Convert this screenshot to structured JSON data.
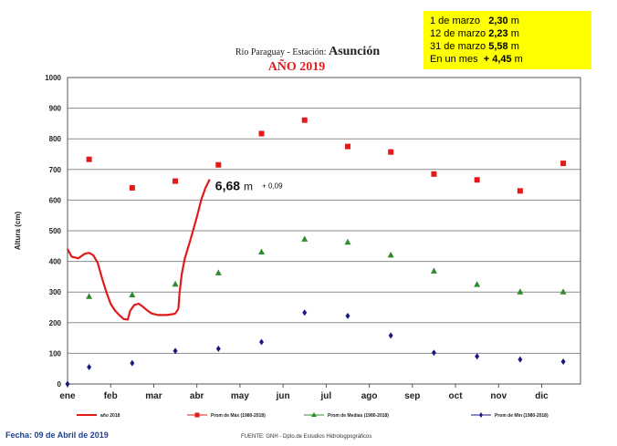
{
  "chart_data": {
    "type": "line",
    "title_line1": "Río Paraguay -  Estación: ",
    "title_station": "Asunción",
    "title_year": "AÑO 2019",
    "ylabel": "Altura (cm)",
    "xlabel": "",
    "ylim": [
      0,
      1000
    ],
    "yticks": [
      "0",
      "100",
      "200",
      "300",
      "400",
      "500",
      "600",
      "700",
      "800",
      "900",
      "1000"
    ],
    "categories": [
      "ene",
      "feb",
      "mar",
      "abr",
      "may",
      "jun",
      "jul",
      "ago",
      "sep",
      "oct",
      "nov",
      "dic"
    ],
    "grid": true,
    "legend_position": "bottom",
    "series": [
      {
        "name": "año 2018",
        "color": "#e21a1a",
        "style": "line",
        "points": [
          [
            0,
            440
          ],
          [
            0.1,
            415
          ],
          [
            0.25,
            410
          ],
          [
            0.4,
            425
          ],
          [
            0.5,
            428
          ],
          [
            0.6,
            420
          ],
          [
            0.7,
            395
          ],
          [
            0.8,
            345
          ],
          [
            0.9,
            300
          ],
          [
            1.0,
            262
          ],
          [
            1.1,
            240
          ],
          [
            1.2,
            225
          ],
          [
            1.3,
            212
          ],
          [
            1.4,
            210
          ],
          [
            1.45,
            238
          ],
          [
            1.55,
            258
          ],
          [
            1.65,
            262
          ],
          [
            1.75,
            252
          ],
          [
            1.85,
            240
          ],
          [
            1.95,
            230
          ],
          [
            2.1,
            225
          ],
          [
            2.3,
            225
          ],
          [
            2.45,
            228
          ],
          [
            2.5,
            230
          ],
          [
            2.57,
            245
          ],
          [
            2.6,
            300
          ],
          [
            2.65,
            360
          ],
          [
            2.72,
            410
          ],
          [
            2.85,
            470
          ],
          [
            3.0,
            545
          ],
          [
            3.1,
            600
          ],
          [
            3.2,
            640
          ],
          [
            3.3,
            668
          ]
        ]
      },
      {
        "name": "Prom de Máx   (1980-2018)",
        "color": "#e21a1a",
        "style": "square",
        "x": [
          0.5,
          1.5,
          2.5,
          3.5,
          4.5,
          5.5,
          6.5,
          7.5,
          8.5,
          9.5,
          10.5,
          11.5
        ],
        "values": [
          733,
          640,
          662,
          715,
          817,
          861,
          775,
          757,
          685,
          666,
          630,
          720
        ]
      },
      {
        "name": "Prom de Medias   (1980-2018)",
        "color": "#2e8b2e",
        "style": "triangle",
        "x": [
          0.5,
          1.5,
          2.5,
          3.5,
          4.5,
          5.5,
          6.5,
          7.5,
          8.5,
          9.5,
          10.5,
          11.5
        ],
        "values": [
          285,
          290,
          325,
          362,
          430,
          472,
          462,
          420,
          368,
          324,
          300,
          300
        ]
      },
      {
        "name": "Prom de Min   (1980-2018)",
        "color": "#1a1a80",
        "style": "diamond",
        "x": [
          0,
          0.5,
          1.5,
          2.5,
          3.5,
          4.5,
          5.5,
          6.5,
          7.5,
          8.5,
          9.5,
          10.5,
          11.5
        ],
        "values": [
          0,
          55,
          68,
          108,
          115,
          137,
          233,
          222,
          158,
          102,
          90,
          80,
          73
        ]
      }
    ],
    "annotation": {
      "x": 3.3,
      "value": "6,68",
      "unit": "m",
      "delta": "+ 0,09"
    }
  },
  "infobox": {
    "rows": [
      {
        "label": "1 de marzo",
        "value": "2,30",
        "unit": "m"
      },
      {
        "label": "12 de marzo",
        "value": "2,23",
        "unit": "m"
      },
      {
        "label": "31 de marzo",
        "value": "5,58",
        "unit": "m"
      },
      {
        "label": "En un mes",
        "value": "+ 4,45",
        "unit": "m"
      }
    ]
  },
  "footer": {
    "date": "Fecha:  09 de Abril de 2019",
    "source": "FUENTE: GNH - Dpto.de Estudios Hidrologpográficos"
  }
}
